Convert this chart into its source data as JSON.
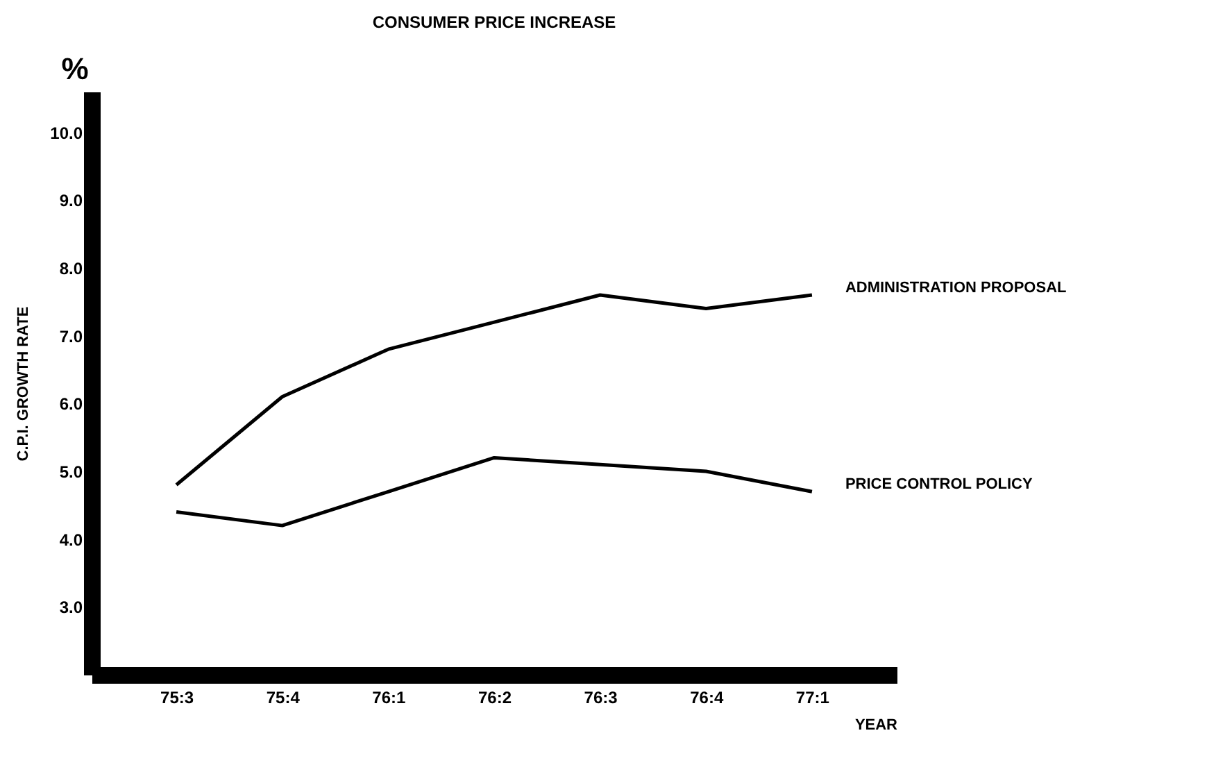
{
  "chart_data": {
    "type": "line",
    "title": "CONSUMER PRICE INCREASE",
    "xlabel": "YEAR",
    "ylabel": "C.P.I. GROWTH RATE",
    "annotations": [
      "%"
    ],
    "categories": [
      "75:3",
      "75:4",
      "76:1",
      "76:2",
      "76:3",
      "76:4",
      "77:1"
    ],
    "series": [
      {
        "name": "ADMINISTRATION PROPOSAL",
        "color": "#000000",
        "values": [
          4.8,
          6.1,
          6.8,
          7.2,
          7.6,
          7.4,
          7.6
        ]
      },
      {
        "name": "PRICE CONTROL POLICY",
        "color": "#000000",
        "values": [
          4.4,
          4.2,
          4.7,
          5.2,
          5.1,
          5.0,
          4.7
        ]
      }
    ],
    "ylim": [
      2,
      10.6
    ],
    "yticks": [
      {
        "value": 3,
        "label": "3.0"
      },
      {
        "value": 4,
        "label": "4.0"
      },
      {
        "value": 5,
        "label": "5.0"
      },
      {
        "value": 6,
        "label": "6.0"
      },
      {
        "value": 7,
        "label": "7.0"
      },
      {
        "value": 8,
        "label": "8.0"
      },
      {
        "value": 9,
        "label": "9.0"
      },
      {
        "value": 10,
        "label": "10.0"
      }
    ],
    "grid": false,
    "legend": false,
    "marker": "none",
    "line_style": "solid"
  }
}
